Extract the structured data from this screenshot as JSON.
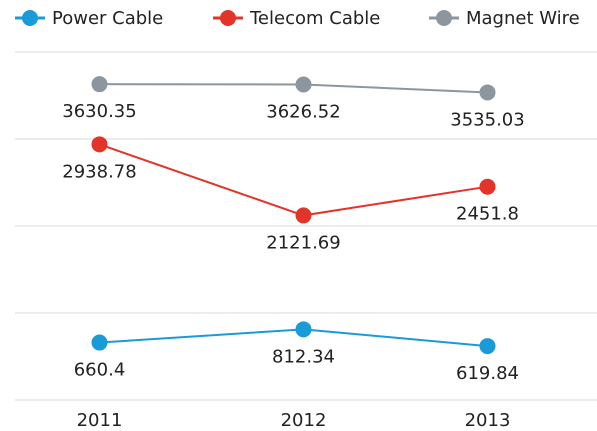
{
  "chart_data": {
    "type": "line",
    "categories": [
      "2011",
      "2012",
      "2013"
    ],
    "series": [
      {
        "name": "Power Cable",
        "color": "#1b9ad8",
        "values": [
          660.4,
          812.34,
          619.84
        ]
      },
      {
        "name": "Telecom Cable",
        "color": "#e3342a",
        "values": [
          2938.78,
          2121.69,
          2451.8
        ]
      },
      {
        "name": "Magnet Wire",
        "color": "#8b969e",
        "values": [
          3630.35,
          3626.52,
          3535.03
        ]
      }
    ],
    "ylim": [
      0,
      4000
    ],
    "yticks": [
      0,
      1000,
      2000,
      3000,
      4000
    ],
    "grid": true,
    "legend": "top"
  }
}
